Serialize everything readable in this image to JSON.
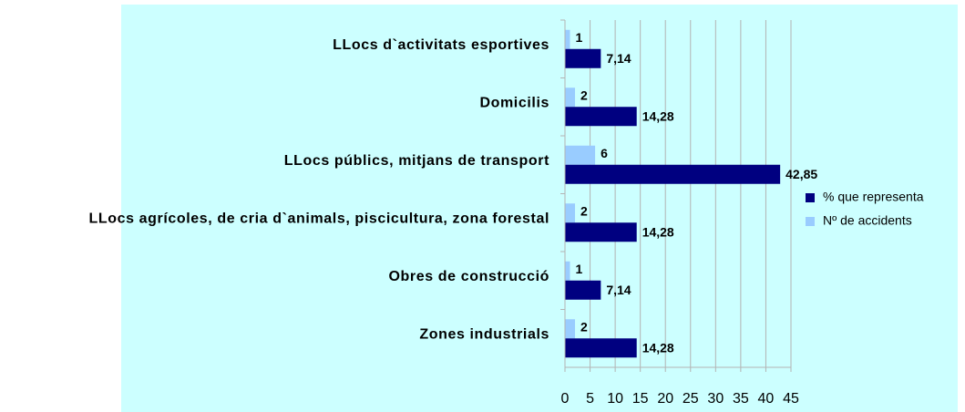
{
  "chart_data": {
    "type": "hbar",
    "categories": [
      "LLocs d`activitats esportives",
      "Domicilis",
      "LLocs públics, mitjans de transport",
      "LLocs agrícoles, de cria d`animals, piscicultura, zona forestal",
      "Obres de construcció",
      "Zones industrials"
    ],
    "series": [
      {
        "name": "% que representa",
        "color": "#000080",
        "values": [
          7.14,
          14.28,
          42.85,
          14.28,
          7.14,
          14.28
        ],
        "value_labels": [
          "7,14",
          "14,28",
          "42,85",
          "14,28",
          "7,14",
          "14,28"
        ]
      },
      {
        "name": "Nº de accidents",
        "color": "#99ccff",
        "values": [
          1,
          2,
          6,
          2,
          1,
          2
        ]
      }
    ],
    "xlim": [
      0,
      45
    ],
    "xticks": [
      0,
      5,
      10,
      15,
      20,
      25,
      30,
      35,
      40,
      45
    ],
    "grid": true,
    "legend": "right"
  }
}
